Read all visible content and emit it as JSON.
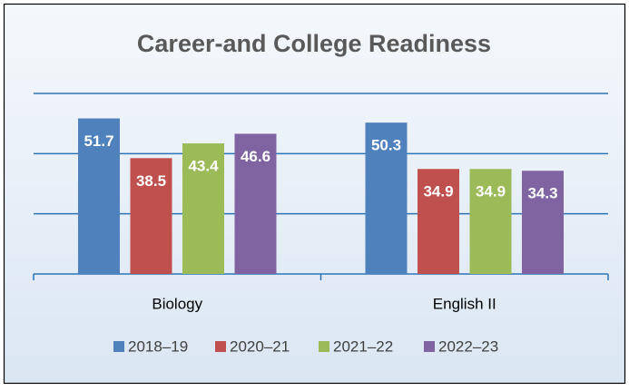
{
  "chart_data": {
    "type": "bar",
    "title": "Career-and College Readiness",
    "categories": [
      "Biology",
      "English II"
    ],
    "series": [
      {
        "name": "2018–19",
        "color": "#4f81bd",
        "values": [
          51.7,
          50.3
        ]
      },
      {
        "name": "2020–21",
        "color": "#c0504d",
        "values": [
          38.5,
          34.9
        ]
      },
      {
        "name": "2021–22",
        "color": "#9bbb59",
        "values": [
          43.4,
          34.9
        ]
      },
      {
        "name": "2022–23",
        "color": "#8064a2",
        "values": [
          46.6,
          34.3
        ]
      }
    ],
    "ylim": [
      0,
      60
    ],
    "yticks": [
      0,
      20,
      40,
      60
    ],
    "grid": true,
    "legend": "bottom"
  }
}
